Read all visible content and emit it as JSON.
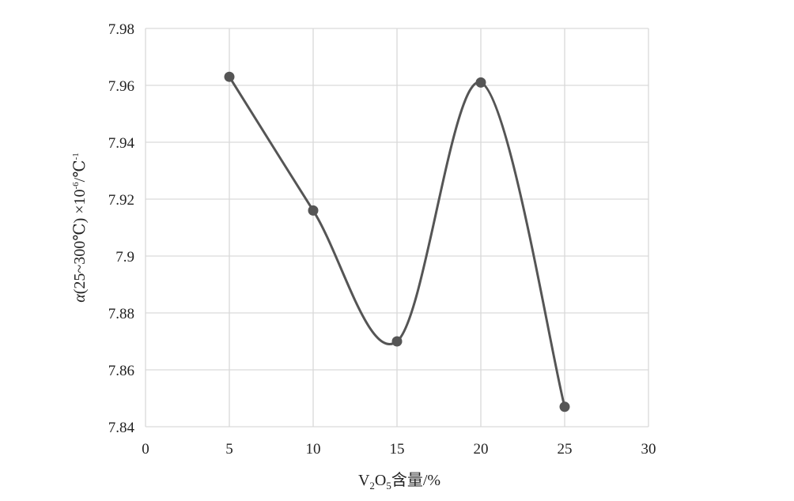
{
  "chart_data": {
    "type": "line",
    "smooth": true,
    "x": [
      5,
      10,
      15,
      20,
      25
    ],
    "series": [
      {
        "values": [
          7.963,
          7.916,
          7.87,
          7.961,
          7.847
        ]
      }
    ],
    "xlim": [
      0,
      30
    ],
    "ylim": [
      7.84,
      7.98
    ],
    "x_ticks": [
      0,
      5,
      10,
      15,
      20,
      25,
      30
    ],
    "y_ticks": [
      7.84,
      7.86,
      7.88,
      7.9,
      7.92,
      7.94,
      7.96,
      7.98
    ],
    "x_tick_labels": [
      "0",
      "5",
      "10",
      "15",
      "20",
      "25",
      "30"
    ],
    "y_tick_labels": [
      "7.84",
      "7.86",
      "7.88",
      "7.9",
      "7.92",
      "7.94",
      "7.96",
      "7.98"
    ],
    "xlabel": {
      "main": "V",
      "sub1": "2",
      "mid": "O",
      "sub2": "5",
      "tail": "含量/%"
    },
    "ylabel": {
      "alpha": "α",
      "range": "(25~300℃) ×10",
      "exp": "-6",
      "unit": "/℃",
      "unit_exp": "-1"
    },
    "grid": true,
    "colors": {
      "line": "#555555",
      "marker": "#555555",
      "grid": "#d9d9d9",
      "text": "#222222"
    }
  }
}
